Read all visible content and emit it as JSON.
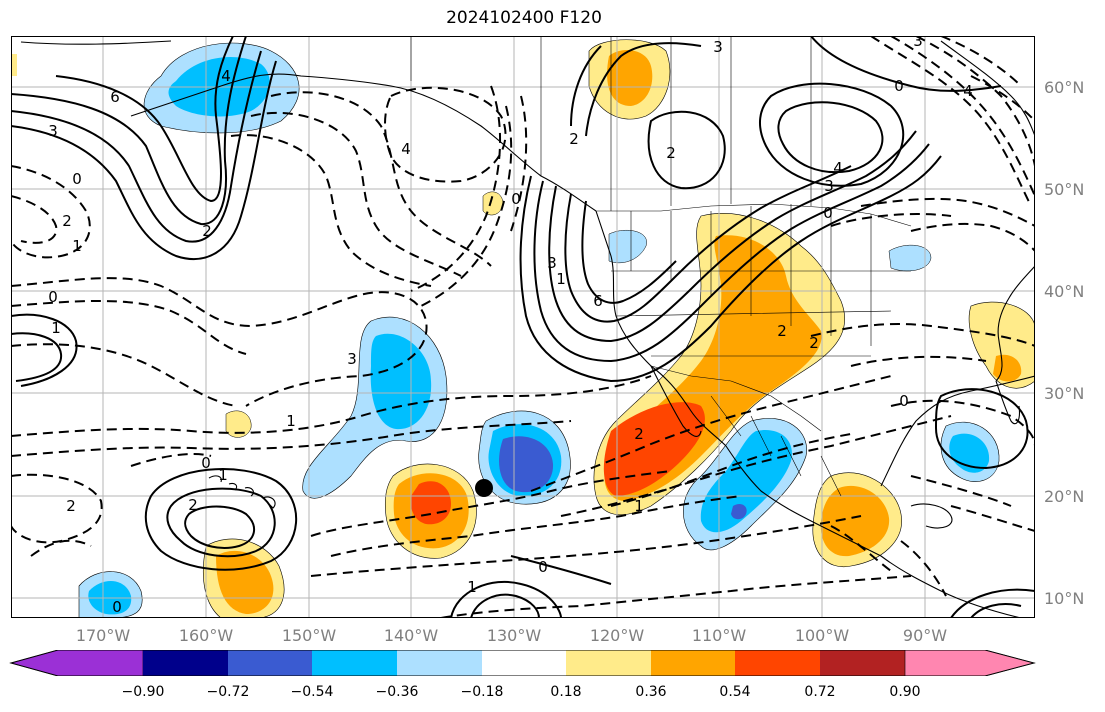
{
  "title": "2024102400 F120",
  "lat_labels": [
    "60°N",
    "50°N",
    "40°N",
    "30°N",
    "20°N",
    "10°N"
  ],
  "lon_labels": [
    "170°W",
    "160°W",
    "150°W",
    "140°W",
    "130°W",
    "120°W",
    "110°W",
    "100°W",
    "90°W"
  ],
  "colorbar": {
    "colors": [
      "#9b30d6",
      "#00008b",
      "#3a5bd1",
      "#00bfff",
      "#ade0ff",
      "#ffffff",
      "#ffeb8a",
      "#ffa500",
      "#ff4500",
      "#b22222",
      "#ff86b0"
    ],
    "ticks": [
      "−0.90",
      "−0.72",
      "−0.54",
      "−0.36",
      "−0.18",
      "0.18",
      "0.36",
      "0.54",
      "0.72",
      "0.90"
    ]
  },
  "contour_labels": [
    "3",
    "6",
    "3",
    "0",
    "2",
    "1",
    "0",
    "2",
    "1",
    "4",
    "0",
    "4",
    "2",
    "3",
    "1",
    "3",
    "4",
    "0",
    "3",
    "6",
    "2",
    "0",
    "3",
    "4",
    "2",
    "2",
    "2",
    "1",
    "0",
    "1",
    "2",
    "0",
    "0",
    "1",
    "2",
    "0",
    "1"
  ],
  "point_marker": "storm-location"
}
